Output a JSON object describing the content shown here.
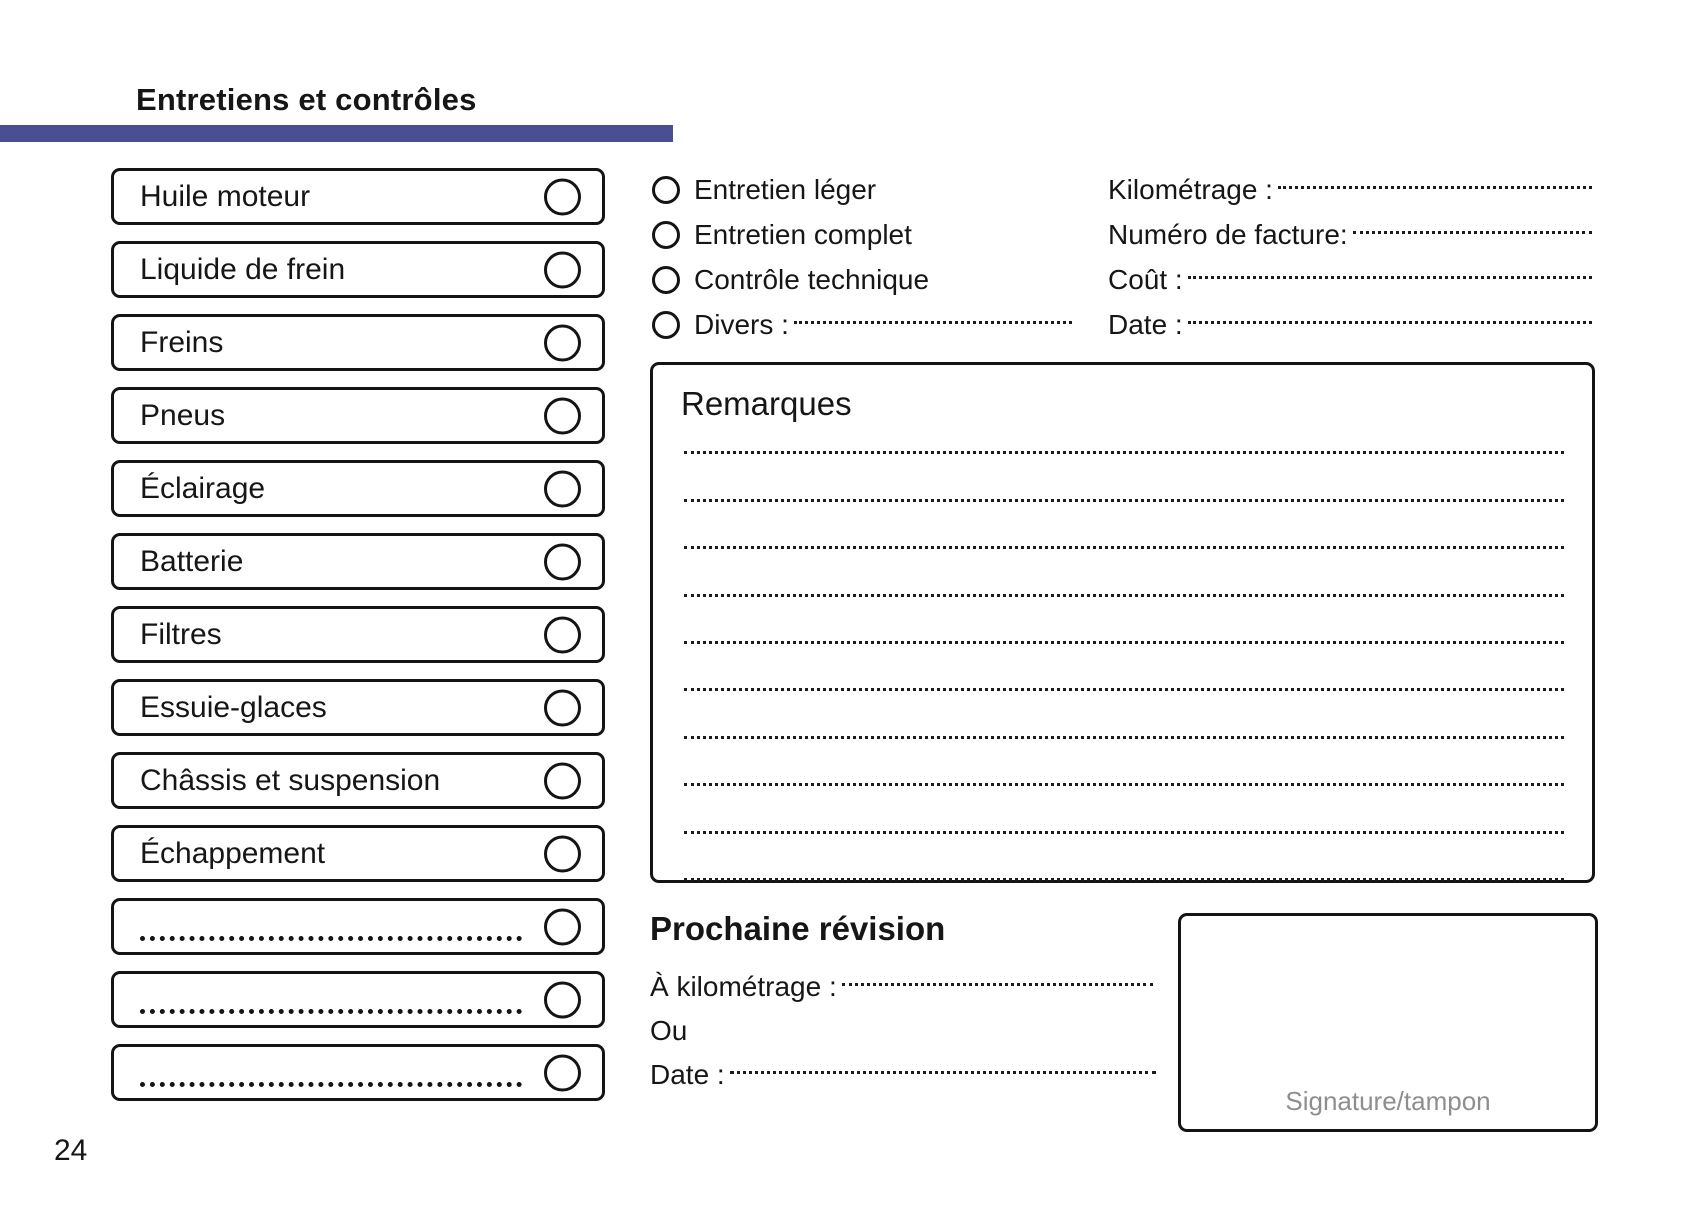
{
  "header": {
    "title": "Entretiens et contrôles",
    "accent_color": "#4a4f94"
  },
  "checklist": {
    "items": [
      {
        "label": "Huile moteur"
      },
      {
        "label": "Liquide de frein"
      },
      {
        "label": "Freins"
      },
      {
        "label": "Pneus"
      },
      {
        "label": "Éclairage"
      },
      {
        "label": "Batterie"
      },
      {
        "label": "Filtres"
      },
      {
        "label": "Essuie-glaces"
      },
      {
        "label": "Châssis et suspension"
      },
      {
        "label": "Échappement"
      },
      {
        "dotted": true
      },
      {
        "dotted": true
      },
      {
        "dotted": true
      }
    ]
  },
  "service_type": {
    "options": [
      {
        "label": "Entretien léger"
      },
      {
        "label": "Entretien complet"
      },
      {
        "label": "Contrôle technique"
      }
    ],
    "divers_label": "Divers :"
  },
  "invoice_fields": [
    {
      "label": "Kilométrage :"
    },
    {
      "label": "Numéro de facture:"
    },
    {
      "label": "Coût :"
    },
    {
      "label": "Date :"
    }
  ],
  "remarks": {
    "title": "Remarques",
    "line_count": 10
  },
  "next_service": {
    "title": "Prochaine révision",
    "km_label": "À kilométrage :",
    "or_label": "Ou",
    "date_label": "Date :"
  },
  "signature": {
    "label": "Signature/tampon",
    "label_color": "#8e8e8e"
  },
  "page": {
    "number": "24"
  }
}
